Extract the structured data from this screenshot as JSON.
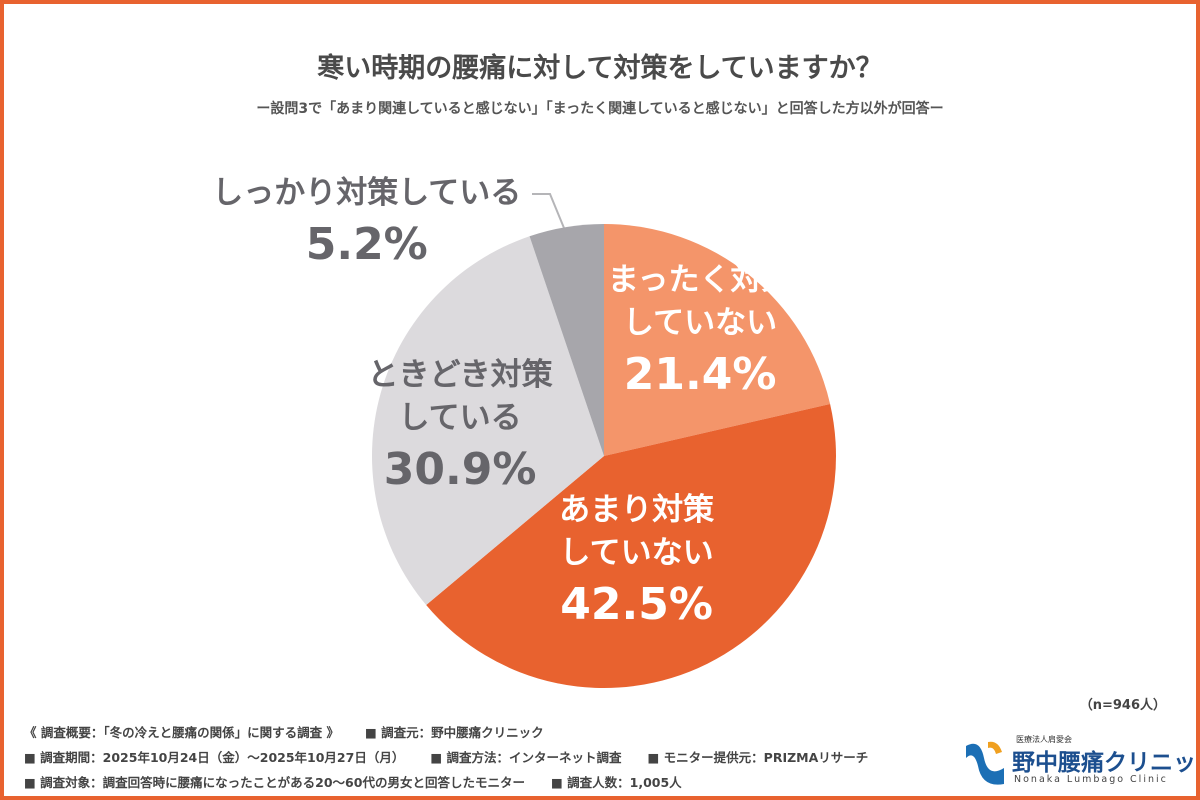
{
  "chart_data": {
    "type": "pie",
    "title": "寒い時期の腰痛に対して対策をしていますか？",
    "subtitle": "ー設問3で「あまり関連していると感じない」「まったく関連していると感じない」と回答した方以外が回答ー",
    "categories": [
      "まったく対策していない",
      "あまり対策していない",
      "ときどき対策している",
      "しっかり対策している"
    ],
    "values": [
      21.4,
      42.5,
      30.9,
      5.2
    ],
    "value_labels": [
      "21.4%",
      "42.5%",
      "30.9%",
      "5.2%"
    ],
    "colors": [
      "#f4956a",
      "#e8622f",
      "#dcdadd",
      "#a7a6ab"
    ],
    "note": "（n=946人）"
  },
  "footer": {
    "rows": [
      [
        "《 調査概要：「冬の冷えと腰痛の関係」に関する調査 》",
        "■ 調査元：野中腰痛クリニック"
      ],
      [
        "■ 調査期間：2025年10月24日（金）～2025年10月27日（月）",
        "■ 調査方法：インターネット調査",
        "■ モニター提供元：PRIZMAリサーチ"
      ],
      [
        "■ 調査対象：調査回答時に腰痛になったことがある20～60代の男女と回答したモニター",
        "■ 調査人数：1,005人"
      ]
    ]
  },
  "logo": {
    "org": "医療法人肩愛会",
    "name": "野中腰痛クリニック",
    "english": "Nonaka Lumbago Clinic"
  }
}
